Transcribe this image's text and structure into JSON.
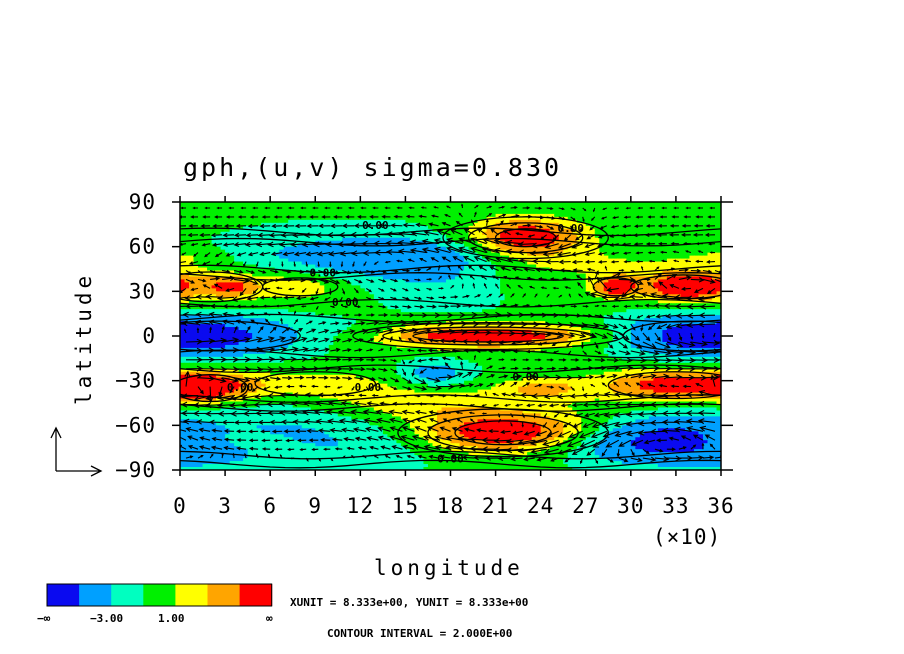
{
  "chart_data": {
    "type": "heatmap",
    "title": "gph,(u,v) sigma=0.830",
    "xlabel": "longitude",
    "ylabel": "latitude",
    "x_ticks": [
      "0",
      "3",
      "6",
      "9",
      "12",
      "15",
      "18",
      "21",
      "24",
      "27",
      "30",
      "33",
      "36"
    ],
    "x_multiplier": "(×10)",
    "y_ticks": [
      "90",
      "60",
      "30",
      "0",
      "−30",
      "−60",
      "−90"
    ],
    "xlim": [
      0,
      360
    ],
    "ylim": [
      -90,
      90
    ],
    "overlay": "wind vectors (u,v)",
    "colorbar": {
      "colors": [
        "#0a0af0",
        "#00a0ff",
        "#00ffc0",
        "#00f000",
        "#ffff00",
        "#ffa500",
        "#ff0000"
      ],
      "labels": [
        "−∞",
        "−3.00",
        "1.00",
        "∞"
      ]
    },
    "contour_labels": [
      "0.00",
      "0.00",
      "0.00",
      "0.00",
      "0.00",
      "0.00",
      "0.00",
      "0.00"
    ],
    "unit_text": "XUNIT = 8.333e+00, YUNIT = 8.333e+00",
    "contour_interval_text": "CONTOUR INTERVAL = 2.000E+00"
  }
}
